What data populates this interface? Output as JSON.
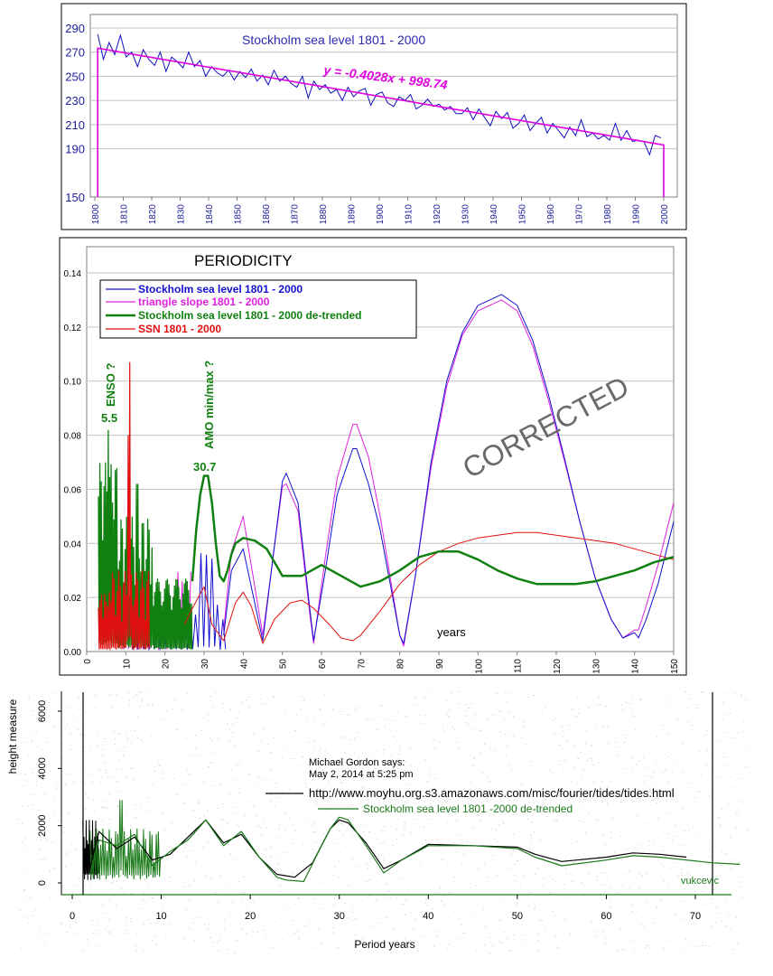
{
  "chart_data": [
    {
      "type": "line",
      "title": "Stockholm sea level 1801 - 2000",
      "trendline_label": "y = -0.4028x + 998.74",
      "xlim": [
        1800,
        2000
      ],
      "ylim": [
        150,
        300
      ],
      "x_ticks": [
        "1800",
        "1810",
        "1820",
        "1830",
        "1840",
        "1850",
        "1860",
        "1870",
        "1880",
        "1890",
        "1900",
        "1910",
        "1920",
        "1930",
        "1940",
        "1950",
        "1960",
        "1970",
        "1980",
        "1990",
        "2000"
      ],
      "y_ticks": [
        "150",
        "190",
        "210",
        "230",
        "250",
        "270",
        "290"
      ],
      "grid": true,
      "colors": {
        "series": "#1010c0",
        "trend": "#e000e0",
        "axis_text": "#2020a0"
      },
      "series": [
        {
          "x": [
            1801,
            1803,
            1805,
            1807,
            1809,
            1811,
            1813,
            1815,
            1817,
            1819,
            1821,
            1823,
            1825,
            1827,
            1829,
            1831,
            1833,
            1835,
            1837,
            1839,
            1841,
            1843,
            1845,
            1847,
            1849,
            1851,
            1853,
            1855,
            1857,
            1859,
            1861,
            1863,
            1865,
            1867,
            1869,
            1871,
            1873,
            1875,
            1877,
            1879,
            1881,
            1883,
            1885,
            1887,
            1889,
            1891,
            1893,
            1895,
            1897,
            1899,
            1901,
            1903,
            1905,
            1907,
            1909,
            1911,
            1913,
            1915,
            1917,
            1919,
            1921,
            1923,
            1925,
            1927,
            1929,
            1931,
            1933,
            1935,
            1937,
            1939,
            1941,
            1943,
            1945,
            1947,
            1949,
            1951,
            1953,
            1955,
            1957,
            1959,
            1961,
            1963,
            1965,
            1967,
            1969,
            1971,
            1973,
            1975,
            1977,
            1979,
            1981,
            1983,
            1985,
            1987,
            1989,
            1991,
            1993,
            1995,
            1997,
            1999
          ],
          "y": [
            285,
            264,
            278,
            268,
            284,
            266,
            270,
            258,
            272,
            264,
            259,
            270,
            254,
            266,
            262,
            257,
            270,
            258,
            263,
            250,
            258,
            253,
            250,
            255,
            247,
            254,
            249,
            256,
            246,
            251,
            243,
            255,
            246,
            250,
            244,
            241,
            250,
            232,
            246,
            239,
            243,
            236,
            239,
            230,
            241,
            233,
            238,
            240,
            226,
            235,
            237,
            228,
            225,
            233,
            230,
            235,
            223,
            226,
            231,
            225,
            227,
            222,
            225,
            219,
            219,
            224,
            214,
            223,
            216,
            209,
            221,
            215,
            220,
            207,
            211,
            218,
            205,
            211,
            216,
            203,
            211,
            205,
            199,
            208,
            201,
            214,
            200,
            203,
            198,
            201,
            197,
            211,
            197,
            205,
            196,
            197,
            196,
            185,
            201,
            199
          ]
        }
      ]
    },
    {
      "type": "line",
      "title": "PERIODICITY",
      "xlabel": "years",
      "xlim": [
        0,
        150
      ],
      "ylim": [
        0,
        0.14
      ],
      "x_ticks": [
        "0",
        "10",
        "20",
        "30",
        "40",
        "50",
        "60",
        "70",
        "80",
        "90",
        "100",
        "110",
        "120",
        "130",
        "140",
        "150"
      ],
      "y_ticks": [
        "0.00",
        "0.02",
        "0.04",
        "0.06",
        "0.08",
        "0.10",
        "0.12",
        "0.14"
      ],
      "grid": true,
      "legend": "top-left",
      "watermark": "CORRECTED",
      "annotations": [
        {
          "text": "ENSO ?",
          "color": "#108010"
        },
        {
          "text": "5.5",
          "color": "#108010"
        },
        {
          "text": "AMO min/max ?",
          "color": "#108010"
        },
        {
          "text": "30.7",
          "color": "#108010"
        }
      ],
      "series": [
        {
          "name": "Stockholm sea level 1801 - 2000",
          "color": "#1010d0",
          "x": [
            35,
            37,
            40,
            45,
            50,
            51,
            54,
            57,
            58,
            61,
            64,
            68,
            69,
            72,
            75,
            80,
            81,
            84,
            88,
            92,
            96,
            100,
            106,
            110,
            114,
            118,
            122,
            126,
            130,
            134,
            137,
            140,
            141,
            143,
            146,
            150
          ],
          "y": [
            0.006,
            0.03,
            0.038,
            0.004,
            0.063,
            0.066,
            0.055,
            0.016,
            0.004,
            0.03,
            0.058,
            0.075,
            0.075,
            0.062,
            0.045,
            0.006,
            0.003,
            0.028,
            0.07,
            0.1,
            0.118,
            0.128,
            0.132,
            0.128,
            0.115,
            0.095,
            0.072,
            0.048,
            0.027,
            0.012,
            0.005,
            0.007,
            0.005,
            0.012,
            0.025,
            0.048
          ]
        },
        {
          "name": "triangle slope 1801 - 2000",
          "color": "#e020e0",
          "x": [
            35,
            37,
            40,
            45,
            50,
            51,
            54,
            57,
            58,
            61,
            64,
            68,
            69,
            72,
            75,
            80,
            81,
            84,
            88,
            92,
            96,
            100,
            106,
            110,
            114,
            118,
            122,
            126,
            130,
            134,
            137,
            140,
            141,
            143,
            146,
            150
          ],
          "y": [
            0.008,
            0.037,
            0.05,
            0.006,
            0.061,
            0.062,
            0.052,
            0.014,
            0.003,
            0.035,
            0.064,
            0.084,
            0.084,
            0.072,
            0.05,
            0.006,
            0.002,
            0.028,
            0.068,
            0.098,
            0.117,
            0.126,
            0.13,
            0.126,
            0.113,
            0.093,
            0.071,
            0.048,
            0.027,
            0.012,
            0.005,
            0.008,
            0.008,
            0.017,
            0.032,
            0.055
          ]
        },
        {
          "name": "Stockholm sea level 1801 - 2000 de-trended",
          "color": "#108010",
          "x": [
            27,
            28,
            29,
            30,
            31,
            32,
            33,
            34,
            35,
            36,
            37,
            38,
            40,
            43,
            46,
            50,
            55,
            60,
            65,
            70,
            75,
            80,
            85,
            90,
            95,
            100,
            105,
            110,
            115,
            120,
            125,
            130,
            135,
            140,
            145,
            150
          ],
          "y": [
            0.026,
            0.045,
            0.058,
            0.065,
            0.065,
            0.055,
            0.04,
            0.028,
            0.026,
            0.03,
            0.036,
            0.04,
            0.042,
            0.041,
            0.038,
            0.028,
            0.028,
            0.032,
            0.028,
            0.024,
            0.026,
            0.03,
            0.035,
            0.037,
            0.037,
            0.034,
            0.03,
            0.027,
            0.025,
            0.025,
            0.025,
            0.026,
            0.028,
            0.03,
            0.033,
            0.035
          ]
        },
        {
          "name": "SSN 1801 - 2000",
          "color": "#e01010",
          "x": [
            25,
            27,
            30,
            32,
            35,
            38,
            40,
            42,
            45,
            48,
            52,
            55,
            58,
            62,
            65,
            68,
            70,
            75,
            80,
            85,
            90,
            95,
            100,
            105,
            110,
            115,
            120,
            125,
            130,
            135,
            140,
            145,
            150
          ],
          "y": [
            0.01,
            0.016,
            0.024,
            0.01,
            0.004,
            0.018,
            0.022,
            0.017,
            0.003,
            0.012,
            0.018,
            0.019,
            0.016,
            0.01,
            0.005,
            0.004,
            0.006,
            0.015,
            0.025,
            0.032,
            0.037,
            0.04,
            0.042,
            0.043,
            0.044,
            0.044,
            0.043,
            0.042,
            0.041,
            0.04,
            0.038,
            0.036,
            0.034
          ]
        }
      ]
    },
    {
      "type": "line",
      "xlabel": "Period years",
      "ylabel": "height measure",
      "xlim": [
        0,
        75
      ],
      "ylim": [
        -300,
        6400
      ],
      "x_ticks": [
        "0",
        "10",
        "20",
        "30",
        "40",
        "50",
        "60",
        "70"
      ],
      "y_ticks": [
        "0",
        "2000",
        "4000",
        "6000"
      ],
      "comment_author": "Michael Gordon says:",
      "comment_date": "May 2, 2014 at 5:25 pm",
      "signature": "vukcevic",
      "series": [
        {
          "name": "http://www.moyhu.org.s3.amazonaws.com/misc/fourier/tides/tides.html",
          "color": "#000000",
          "x": [
            2,
            3,
            5,
            7,
            9,
            11,
            13,
            15,
            17,
            19,
            21,
            23,
            25,
            27,
            29,
            30,
            31,
            33,
            35,
            37,
            40,
            45,
            50,
            52,
            55,
            60,
            63,
            66,
            69
          ],
          "y": [
            500,
            1800,
            1200,
            1600,
            800,
            1000,
            1600,
            2200,
            1400,
            1700,
            900,
            300,
            200,
            700,
            1900,
            2200,
            2100,
            1400,
            500,
            800,
            1350,
            1300,
            1250,
            1000,
            750,
            900,
            1050,
            1000,
            900
          ]
        },
        {
          "name": "Stockholm sea level 1801 -2000 de-trended",
          "color": "#1a7a1a",
          "x": [
            2,
            3,
            5,
            7,
            9,
            11,
            13,
            15,
            17,
            19,
            21,
            23,
            24,
            26,
            28,
            29,
            30,
            31,
            33,
            35,
            37,
            40,
            45,
            50,
            52,
            55,
            60,
            63,
            66,
            69,
            72,
            75
          ],
          "y": [
            300,
            1500,
            1300,
            1700,
            600,
            1100,
            1500,
            2200,
            1300,
            1800,
            900,
            200,
            100,
            50,
            1300,
            1900,
            2300,
            2200,
            1300,
            350,
            800,
            1300,
            1300,
            1200,
            900,
            600,
            800,
            950,
            900,
            800,
            700,
            650
          ]
        }
      ]
    }
  ]
}
